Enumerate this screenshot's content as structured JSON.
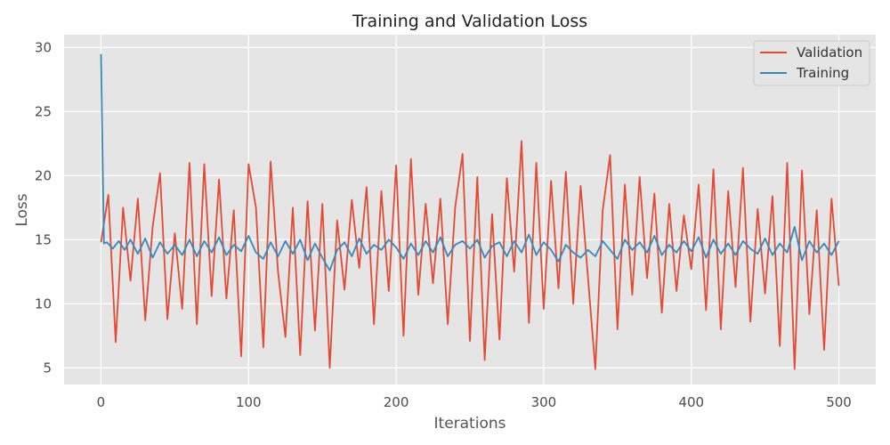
{
  "chart_data": {
    "type": "line",
    "title": "Training and Validation Loss",
    "xlabel": "Iterations",
    "ylabel": "Loss",
    "xlim": [
      -25,
      525
    ],
    "ylim": [
      3.7,
      31
    ],
    "xticks": [
      0,
      100,
      200,
      300,
      400,
      500
    ],
    "yticks": [
      5,
      10,
      15,
      20,
      25,
      30
    ],
    "grid": true,
    "legend_position": "top-right",
    "background": "#e5e5e5",
    "series": [
      {
        "name": "Validation",
        "color": "#e24a33",
        "x": [
          0,
          5,
          10,
          15,
          20,
          25,
          30,
          35,
          40,
          45,
          50,
          55,
          60,
          65,
          70,
          75,
          80,
          85,
          90,
          95,
          100,
          105,
          110,
          115,
          120,
          125,
          130,
          135,
          140,
          145,
          150,
          155,
          160,
          165,
          170,
          175,
          180,
          185,
          190,
          195,
          200,
          205,
          210,
          215,
          220,
          225,
          230,
          235,
          240,
          245,
          250,
          255,
          260,
          265,
          270,
          275,
          280,
          285,
          290,
          295,
          300,
          305,
          310,
          315,
          320,
          325,
          330,
          335,
          340,
          345,
          350,
          355,
          360,
          365,
          370,
          375,
          380,
          385,
          390,
          395,
          400,
          405,
          410,
          415,
          420,
          425,
          430,
          435,
          440,
          445,
          450,
          455,
          460,
          465,
          470,
          475,
          480,
          485,
          490,
          495,
          500
        ],
        "values": [
          14.8,
          18.5,
          7.0,
          17.5,
          11.8,
          18.2,
          8.7,
          16.0,
          20.2,
          8.8,
          15.5,
          9.6,
          21.0,
          8.4,
          20.9,
          10.6,
          19.7,
          10.4,
          17.3,
          5.9,
          20.9,
          17.5,
          6.6,
          21.1,
          12.5,
          7.4,
          17.5,
          6.0,
          18.0,
          7.9,
          17.8,
          5.0,
          16.5,
          11.1,
          18.1,
          12.8,
          19.1,
          8.4,
          18.8,
          11.0,
          20.8,
          7.5,
          21.3,
          10.7,
          17.8,
          11.6,
          18.2,
          8.4,
          17.5,
          21.7,
          7.1,
          19.9,
          5.6,
          17.0,
          7.2,
          19.8,
          12.5,
          22.7,
          8.5,
          21.0,
          9.6,
          19.6,
          11.2,
          20.3,
          10.0,
          19.2,
          12.0,
          4.9,
          17.3,
          21.6,
          8.0,
          19.3,
          10.7,
          19.9,
          12.0,
          18.6,
          9.3,
          17.8,
          11.0,
          16.9,
          12.7,
          19.3,
          9.5,
          20.5,
          8.0,
          18.8,
          11.3,
          20.6,
          8.6,
          17.4,
          10.8,
          18.4,
          6.7,
          21.0,
          4.9,
          20.4,
          9.2,
          17.3,
          6.4,
          18.2,
          11.4
        ]
      },
      {
        "name": "Training",
        "color": "#348abd",
        "x": [
          0,
          2,
          4,
          8,
          12,
          16,
          20,
          25,
          30,
          35,
          40,
          45,
          50,
          55,
          60,
          65,
          70,
          75,
          80,
          85,
          90,
          95,
          100,
          105,
          110,
          115,
          120,
          125,
          130,
          135,
          140,
          145,
          150,
          155,
          160,
          165,
          170,
          175,
          180,
          185,
          190,
          195,
          200,
          205,
          210,
          215,
          220,
          225,
          230,
          235,
          240,
          245,
          250,
          255,
          260,
          265,
          270,
          275,
          280,
          285,
          290,
          295,
          300,
          305,
          310,
          315,
          320,
          325,
          330,
          335,
          340,
          345,
          350,
          355,
          360,
          365,
          370,
          375,
          380,
          385,
          390,
          395,
          400,
          405,
          410,
          415,
          420,
          425,
          430,
          435,
          440,
          445,
          450,
          455,
          460,
          465,
          470,
          475,
          480,
          485,
          490,
          495,
          500
        ],
        "values": [
          29.5,
          14.7,
          14.8,
          14.3,
          14.9,
          14.2,
          15.0,
          13.9,
          15.1,
          13.6,
          14.8,
          13.9,
          14.6,
          13.8,
          15.0,
          13.7,
          14.9,
          14.0,
          15.2,
          13.8,
          14.6,
          14.1,
          15.3,
          14.0,
          13.5,
          14.8,
          13.7,
          14.9,
          13.9,
          15.0,
          13.4,
          14.7,
          13.6,
          12.6,
          14.2,
          14.8,
          13.7,
          15.1,
          13.9,
          14.6,
          14.2,
          15.0,
          14.4,
          13.5,
          14.7,
          13.8,
          14.9,
          14.0,
          15.2,
          13.7,
          14.6,
          14.9,
          14.3,
          15.0,
          13.6,
          14.5,
          14.8,
          13.7,
          14.9,
          14.0,
          15.4,
          13.8,
          14.8,
          14.2,
          13.3,
          14.6,
          14.0,
          13.6,
          14.2,
          13.7,
          14.9,
          14.2,
          13.5,
          15.0,
          14.2,
          14.8,
          14.0,
          15.3,
          13.8,
          14.6,
          14.0,
          14.9,
          14.1,
          15.2,
          13.6,
          15.0,
          13.9,
          14.7,
          13.8,
          14.9,
          14.3,
          13.9,
          15.1,
          13.8,
          14.7,
          14.0,
          16.0,
          13.4,
          14.9,
          14.0,
          14.7,
          13.8,
          14.9
        ]
      }
    ]
  }
}
